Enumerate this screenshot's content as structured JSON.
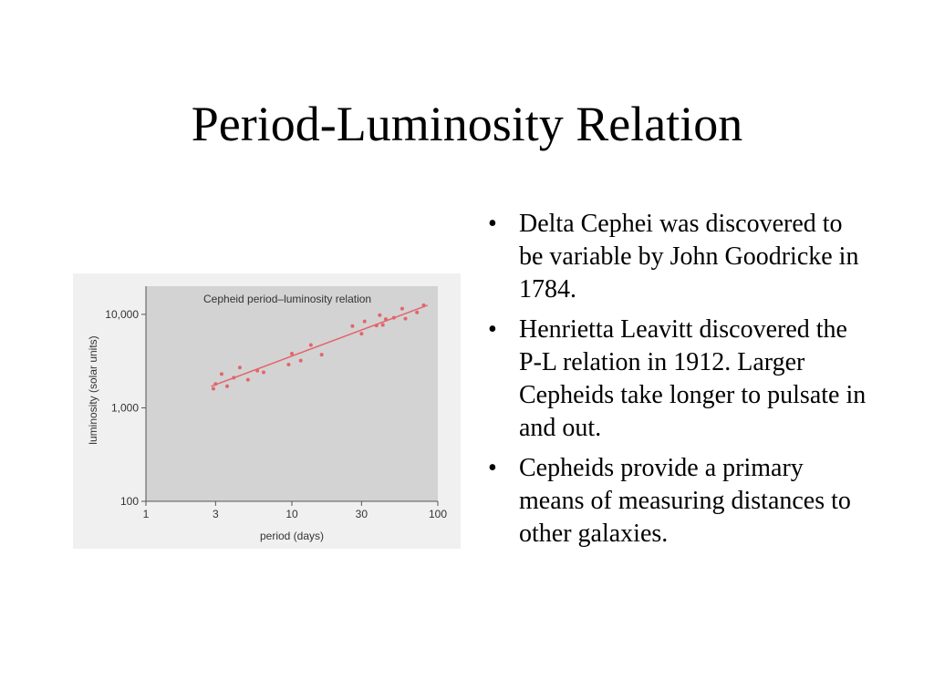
{
  "slide": {
    "title": "Period-Luminosity Relation",
    "bullets": [
      {
        "symbol": "•",
        "text": "Delta Cephei was discovered to be variable by John Goodricke in 1784."
      },
      {
        "symbol": "•",
        "text": "Henrietta Leavitt discovered the P-L relation in 1912. Larger Cepheids take longer to pulsate in and out."
      },
      {
        "symbol": "•",
        "text": "Cepheids provide a primary means of measuring distances to other galaxies."
      }
    ]
  },
  "colors": {
    "plot_background": "#d3d3d3",
    "page_background": "#f0f0f0",
    "trend_line": "#e2656b",
    "points": "#e2656b",
    "axis": "#555555",
    "text": "#333333"
  },
  "chart_data": {
    "type": "scatter",
    "title": "Cepheid period–luminosity relation",
    "xlabel": "period (days)",
    "ylabel": "luminosity (solar units)",
    "x_scale": "log",
    "y_scale": "log",
    "xlim": [
      1,
      100
    ],
    "ylim": [
      100,
      20000
    ],
    "x_ticks": [
      {
        "value": 1,
        "label": "1"
      },
      {
        "value": 3,
        "label": "3"
      },
      {
        "value": 10,
        "label": "10"
      },
      {
        "value": 30,
        "label": "30"
      },
      {
        "value": 100,
        "label": "100"
      }
    ],
    "y_ticks": [
      {
        "value": 100,
        "label": "100"
      },
      {
        "value": 1000,
        "label": "1,000"
      },
      {
        "value": 10000,
        "label": "10,000"
      }
    ],
    "grid": false,
    "legend": "none",
    "series": [
      {
        "points": [
          {
            "x": 2.9,
            "y": 1600
          },
          {
            "x": 3.0,
            "y": 1800
          },
          {
            "x": 3.3,
            "y": 2300
          },
          {
            "x": 3.6,
            "y": 1700
          },
          {
            "x": 4.0,
            "y": 2100
          },
          {
            "x": 4.4,
            "y": 2700
          },
          {
            "x": 5.0,
            "y": 2000
          },
          {
            "x": 5.8,
            "y": 2500
          },
          {
            "x": 6.4,
            "y": 2400
          },
          {
            "x": 9.5,
            "y": 2900
          },
          {
            "x": 10.0,
            "y": 3800
          },
          {
            "x": 11.5,
            "y": 3200
          },
          {
            "x": 13.5,
            "y": 4700
          },
          {
            "x": 16.0,
            "y": 3700
          },
          {
            "x": 26.0,
            "y": 7500
          },
          {
            "x": 30.0,
            "y": 6200
          },
          {
            "x": 31.5,
            "y": 8400
          },
          {
            "x": 38.0,
            "y": 7600
          },
          {
            "x": 40.0,
            "y": 9800
          },
          {
            "x": 42.0,
            "y": 7700
          },
          {
            "x": 44.0,
            "y": 8900
          },
          {
            "x": 50.0,
            "y": 9200
          },
          {
            "x": 57.0,
            "y": 11500
          },
          {
            "x": 60.0,
            "y": 9000
          },
          {
            "x": 72.0,
            "y": 10500
          },
          {
            "x": 80.0,
            "y": 12500
          }
        ]
      }
    ],
    "trend_line": [
      {
        "x": 2.8,
        "y": 1700
      },
      {
        "x": 85,
        "y": 12500
      }
    ]
  }
}
